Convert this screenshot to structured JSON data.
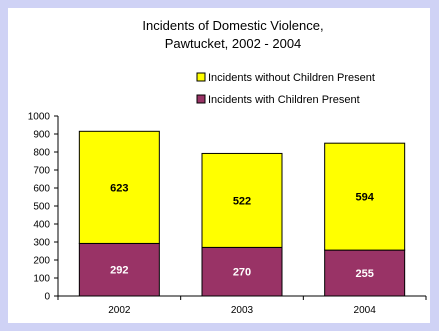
{
  "colors": {
    "page_background": "#cfd2f5",
    "plot_background": "#ffffff",
    "with_children": "#993366",
    "without_children": "#ffff00",
    "bar_outline": "#000000"
  },
  "chart_data": {
    "type": "bar",
    "stacked": true,
    "title": "Incidents of Domestic Violence,",
    "subtitle": "Pawtucket, 2002 - 2004",
    "xlabel": "",
    "ylabel": "",
    "categories": [
      "2002",
      "2003",
      "2004"
    ],
    "series": [
      {
        "name": "Incidents with Children Present",
        "values": [
          292,
          270,
          255
        ],
        "color": "#993366"
      },
      {
        "name": "Incidents without Children Present",
        "values": [
          623,
          522,
          594
        ],
        "color": "#ffff00"
      }
    ],
    "ylim": [
      0,
      1000
    ],
    "yticks": [
      0,
      100,
      200,
      300,
      400,
      500,
      600,
      700,
      800,
      900,
      1000
    ],
    "grid": false,
    "legend_position": "top-right",
    "data_labels": true
  }
}
